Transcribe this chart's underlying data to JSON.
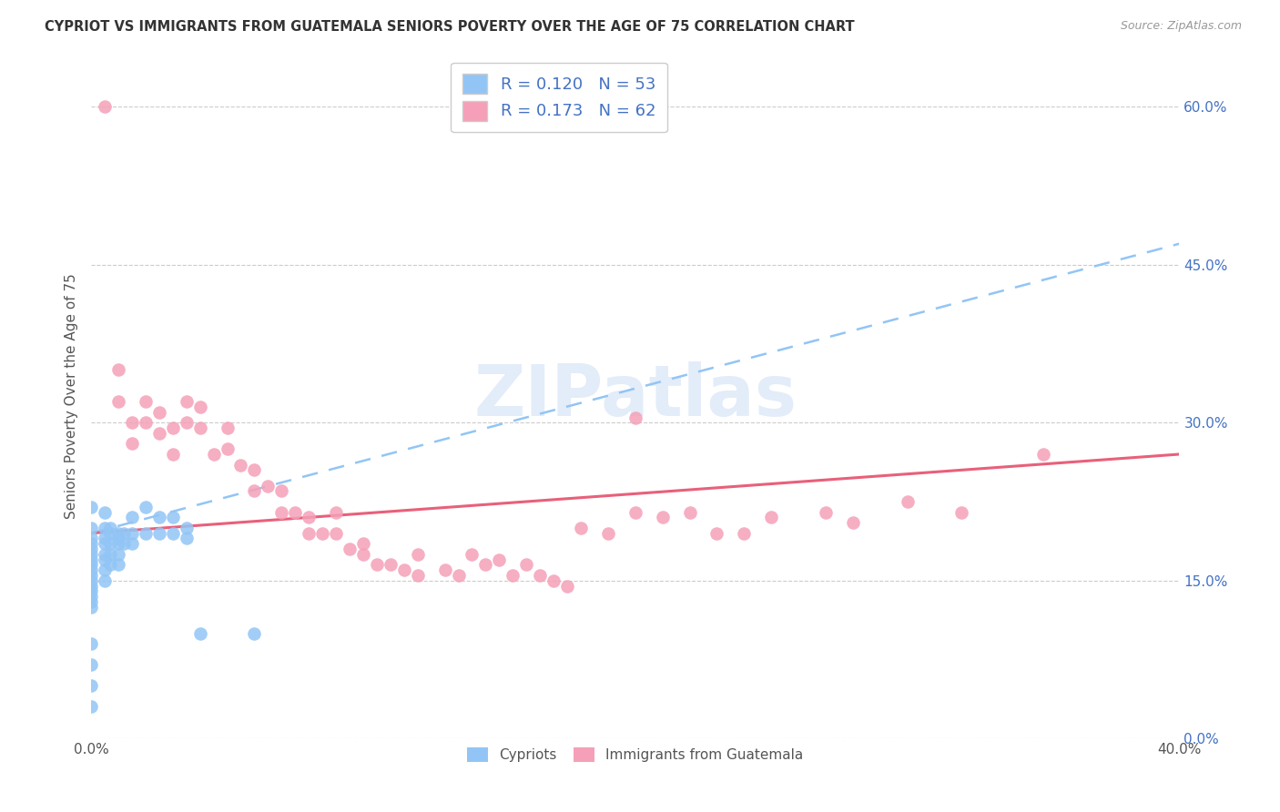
{
  "title": "CYPRIOT VS IMMIGRANTS FROM GUATEMALA SENIORS POVERTY OVER THE AGE OF 75 CORRELATION CHART",
  "source": "Source: ZipAtlas.com",
  "ylabel": "Seniors Poverty Over the Age of 75",
  "xlim": [
    0.0,
    0.4
  ],
  "ylim": [
    0.0,
    0.65
  ],
  "ytick_positions": [
    0.0,
    0.15,
    0.3,
    0.45,
    0.6
  ],
  "ytick_labels_right": [
    "0.0%",
    "15.0%",
    "30.0%",
    "45.0%",
    "60.0%"
  ],
  "legend_label1": "Cypriots",
  "legend_label2": "Immigrants from Guatemala",
  "R1": 0.12,
  "N1": 53,
  "R2": 0.173,
  "N2": 62,
  "color1": "#92c5f5",
  "color2": "#f5a0b8",
  "trendline1_color": "#92c5f5",
  "trendline2_color": "#e8607a",
  "watermark": "ZIPatlas",
  "cypriot_x": [
    0.0,
    0.0,
    0.0,
    0.0,
    0.0,
    0.0,
    0.0,
    0.0,
    0.0,
    0.0,
    0.0,
    0.0,
    0.0,
    0.0,
    0.0,
    0.0,
    0.0,
    0.0,
    0.0,
    0.0,
    0.005,
    0.005,
    0.005,
    0.005,
    0.005,
    0.005,
    0.005,
    0.005,
    0.007,
    0.007,
    0.007,
    0.007,
    0.007,
    0.01,
    0.01,
    0.01,
    0.01,
    0.01,
    0.012,
    0.012,
    0.015,
    0.015,
    0.015,
    0.02,
    0.02,
    0.025,
    0.025,
    0.03,
    0.03,
    0.035,
    0.035,
    0.04,
    0.06
  ],
  "cypriot_y": [
    0.22,
    0.2,
    0.19,
    0.185,
    0.18,
    0.175,
    0.17,
    0.165,
    0.16,
    0.155,
    0.15,
    0.145,
    0.14,
    0.135,
    0.13,
    0.125,
    0.09,
    0.07,
    0.05,
    0.03,
    0.215,
    0.2,
    0.19,
    0.185,
    0.175,
    0.17,
    0.16,
    0.15,
    0.2,
    0.195,
    0.185,
    0.175,
    0.165,
    0.195,
    0.19,
    0.185,
    0.175,
    0.165,
    0.195,
    0.185,
    0.21,
    0.195,
    0.185,
    0.22,
    0.195,
    0.21,
    0.195,
    0.21,
    0.195,
    0.2,
    0.19,
    0.1,
    0.1
  ],
  "guatemala_x": [
    0.005,
    0.01,
    0.01,
    0.015,
    0.015,
    0.02,
    0.02,
    0.025,
    0.025,
    0.03,
    0.03,
    0.035,
    0.035,
    0.04,
    0.04,
    0.045,
    0.05,
    0.05,
    0.055,
    0.06,
    0.06,
    0.065,
    0.07,
    0.07,
    0.075,
    0.08,
    0.08,
    0.085,
    0.09,
    0.09,
    0.095,
    0.1,
    0.1,
    0.105,
    0.11,
    0.115,
    0.12,
    0.12,
    0.13,
    0.135,
    0.14,
    0.145,
    0.15,
    0.155,
    0.16,
    0.165,
    0.17,
    0.175,
    0.18,
    0.19,
    0.2,
    0.21,
    0.22,
    0.23,
    0.24,
    0.25,
    0.27,
    0.28,
    0.3,
    0.32,
    0.35,
    0.2
  ],
  "guatemala_y": [
    0.6,
    0.35,
    0.32,
    0.3,
    0.28,
    0.32,
    0.3,
    0.31,
    0.29,
    0.295,
    0.27,
    0.32,
    0.3,
    0.315,
    0.295,
    0.27,
    0.295,
    0.275,
    0.26,
    0.255,
    0.235,
    0.24,
    0.235,
    0.215,
    0.215,
    0.21,
    0.195,
    0.195,
    0.215,
    0.195,
    0.18,
    0.185,
    0.175,
    0.165,
    0.165,
    0.16,
    0.175,
    0.155,
    0.16,
    0.155,
    0.175,
    0.165,
    0.17,
    0.155,
    0.165,
    0.155,
    0.15,
    0.145,
    0.2,
    0.195,
    0.215,
    0.21,
    0.215,
    0.195,
    0.195,
    0.21,
    0.215,
    0.205,
    0.225,
    0.215,
    0.27,
    0.305
  ],
  "trend1_x0": 0.0,
  "trend1_y0": 0.195,
  "trend1_x1": 0.4,
  "trend1_y1": 0.47,
  "trend2_x0": 0.0,
  "trend2_y0": 0.195,
  "trend2_x1": 0.4,
  "trend2_y1": 0.27
}
